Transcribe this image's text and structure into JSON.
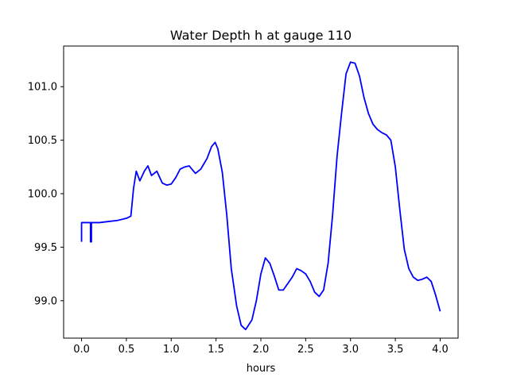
{
  "chart_data": {
    "type": "line",
    "title": "Water Depth h at gauge 110",
    "xlabel": "hours",
    "ylabel": "",
    "xlim": [
      -0.2,
      4.2
    ],
    "ylim": [
      98.65,
      101.38
    ],
    "x_ticks": [
      0.0,
      0.5,
      1.0,
      1.5,
      2.0,
      2.5,
      3.0,
      3.5,
      4.0
    ],
    "x_tick_labels": [
      "0.0",
      "0.5",
      "1.0",
      "1.5",
      "2.0",
      "2.5",
      "3.0",
      "3.5",
      "4.0"
    ],
    "y_ticks": [
      99.0,
      99.5,
      100.0,
      100.5,
      101.0
    ],
    "y_tick_labels": [
      "99.0",
      "99.5",
      "100.0",
      "100.5",
      "101.0"
    ],
    "grid": false,
    "series": [
      {
        "color": "#0000ff",
        "points": [
          [
            0.0,
            99.55
          ],
          [
            0.0,
            99.73
          ],
          [
            0.1,
            99.73
          ],
          [
            0.1,
            99.55
          ],
          [
            0.11,
            99.55
          ],
          [
            0.11,
            99.73
          ],
          [
            0.2,
            99.73
          ],
          [
            0.3,
            99.74
          ],
          [
            0.4,
            99.75
          ],
          [
            0.5,
            99.77
          ],
          [
            0.55,
            99.79
          ],
          [
            0.58,
            100.05
          ],
          [
            0.61,
            100.21
          ],
          [
            0.65,
            100.12
          ],
          [
            0.7,
            100.21
          ],
          [
            0.74,
            100.26
          ],
          [
            0.78,
            100.17
          ],
          [
            0.84,
            100.21
          ],
          [
            0.9,
            100.1
          ],
          [
            0.95,
            100.08
          ],
          [
            1.0,
            100.09
          ],
          [
            1.05,
            100.15
          ],
          [
            1.1,
            100.23
          ],
          [
            1.15,
            100.25
          ],
          [
            1.2,
            100.26
          ],
          [
            1.27,
            100.19
          ],
          [
            1.33,
            100.23
          ],
          [
            1.4,
            100.33
          ],
          [
            1.45,
            100.44
          ],
          [
            1.49,
            100.48
          ],
          [
            1.52,
            100.42
          ],
          [
            1.57,
            100.2
          ],
          [
            1.62,
            99.8
          ],
          [
            1.67,
            99.3
          ],
          [
            1.73,
            98.95
          ],
          [
            1.78,
            98.77
          ],
          [
            1.83,
            98.73
          ],
          [
            1.9,
            98.82
          ],
          [
            1.95,
            99.0
          ],
          [
            2.0,
            99.25
          ],
          [
            2.05,
            99.4
          ],
          [
            2.1,
            99.35
          ],
          [
            2.15,
            99.23
          ],
          [
            2.2,
            99.1
          ],
          [
            2.25,
            99.1
          ],
          [
            2.3,
            99.16
          ],
          [
            2.35,
            99.22
          ],
          [
            2.4,
            99.3
          ],
          [
            2.45,
            99.28
          ],
          [
            2.5,
            99.25
          ],
          [
            2.55,
            99.18
          ],
          [
            2.6,
            99.08
          ],
          [
            2.65,
            99.04
          ],
          [
            2.7,
            99.1
          ],
          [
            2.75,
            99.35
          ],
          [
            2.8,
            99.8
          ],
          [
            2.85,
            100.35
          ],
          [
            2.9,
            100.75
          ],
          [
            2.95,
            101.12
          ],
          [
            3.0,
            101.23
          ],
          [
            3.05,
            101.22
          ],
          [
            3.1,
            101.1
          ],
          [
            3.15,
            100.9
          ],
          [
            3.2,
            100.75
          ],
          [
            3.25,
            100.65
          ],
          [
            3.3,
            100.6
          ],
          [
            3.35,
            100.57
          ],
          [
            3.4,
            100.55
          ],
          [
            3.45,
            100.5
          ],
          [
            3.5,
            100.25
          ],
          [
            3.55,
            99.85
          ],
          [
            3.6,
            99.48
          ],
          [
            3.65,
            99.3
          ],
          [
            3.7,
            99.22
          ],
          [
            3.75,
            99.19
          ],
          [
            3.8,
            99.2
          ],
          [
            3.85,
            99.22
          ],
          [
            3.9,
            99.18
          ],
          [
            3.95,
            99.05
          ],
          [
            4.0,
            98.9
          ]
        ]
      }
    ]
  }
}
